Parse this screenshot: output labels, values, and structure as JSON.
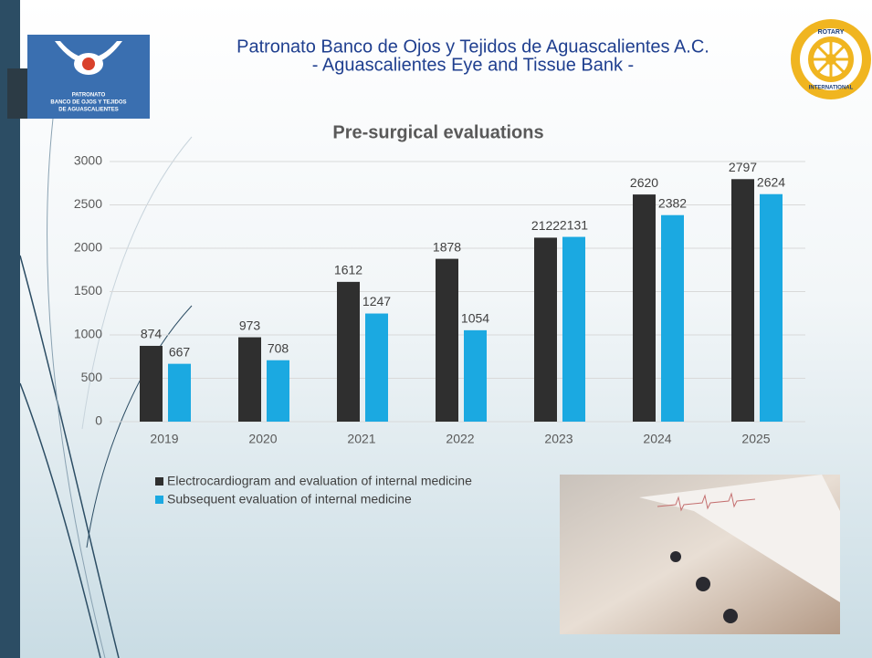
{
  "header": {
    "title": [
      "Patronato Banco de Ojos y Tejidos de Aguascalientes A.C.",
      "- Aguascalientes Eye and Tissue Bank -"
    ],
    "logo_text": [
      "PATRONATO",
      "BANCO DE OJOS Y TEJIDOS",
      "DE AGUASCALIENTES"
    ],
    "rotary_text": [
      "ROTARY",
      "INTERNATIONAL"
    ]
  },
  "chart_data": {
    "type": "bar",
    "title": "Pre-surgical evaluations",
    "categories": [
      "2019",
      "2020",
      "2021",
      "2022",
      "2023",
      "2024",
      "2025"
    ],
    "series": [
      {
        "name": "Electrocardiogram and evaluation of internal medicine",
        "color": "#2f2f2f",
        "values": [
          874,
          973,
          1612,
          1878,
          2122,
          2620,
          2797
        ]
      },
      {
        "name": "Subsequent evaluation of internal medicine",
        "color": "#1ba9e1",
        "values": [
          667,
          708,
          1247,
          1054,
          2131,
          2382,
          2624
        ]
      }
    ],
    "ylim": [
      0,
      3000
    ],
    "yticks": [
      0,
      500,
      1000,
      1500,
      2000,
      2500,
      3000
    ],
    "grid": true
  }
}
